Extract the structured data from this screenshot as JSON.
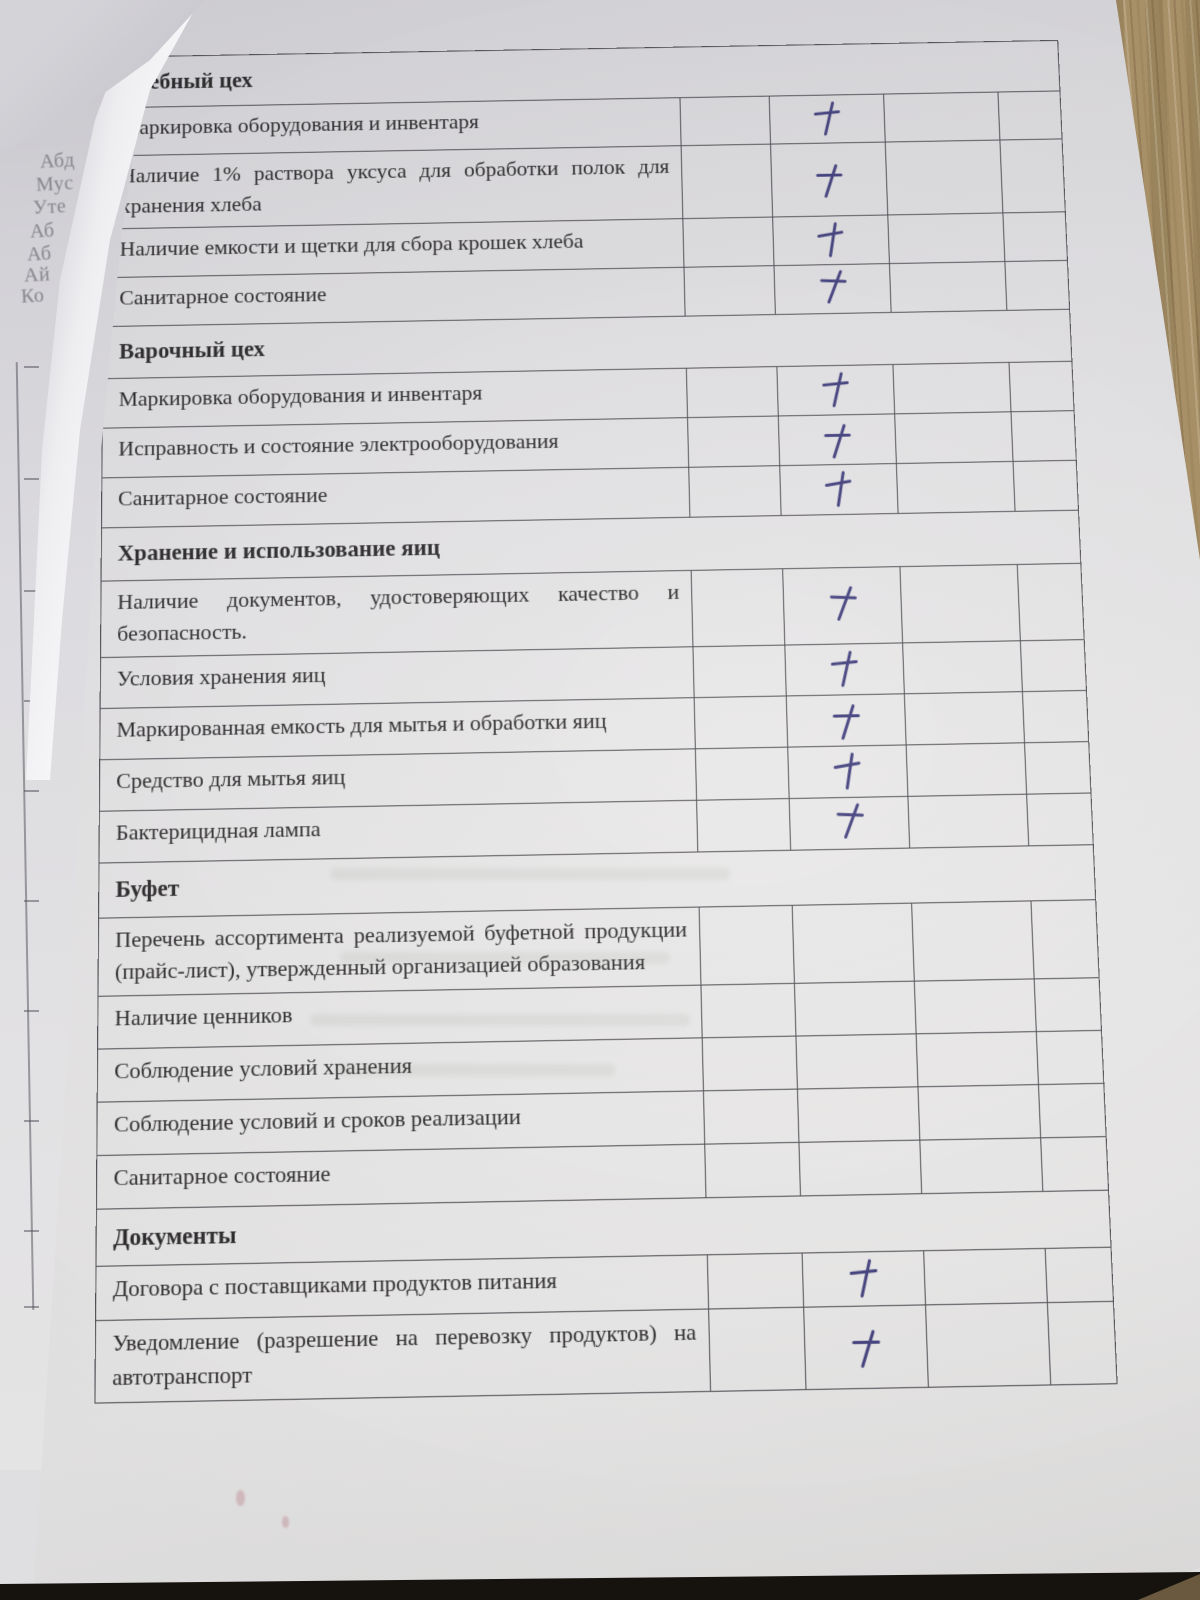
{
  "colors": {
    "ink": "#44427f",
    "table_line": "#343338",
    "wood": "#a79067",
    "paper": "#eae9ea"
  },
  "checklist": {
    "check_symbol": "+",
    "sections": [
      {
        "title": "Хлебный цех",
        "rows": [
          {
            "label": "Маркировка оборудования и инвентаря",
            "checked": true
          },
          {
            "label": "Наличие 1% раствора уксуса для обработки полок для хранения хлеба",
            "checked": true
          },
          {
            "label": "Наличие емкости и щетки для сбора крошек хлеба",
            "checked": true
          },
          {
            "label": "Санитарное состояние",
            "checked": true
          }
        ]
      },
      {
        "title": "Варочный цех",
        "rows": [
          {
            "label": "Маркировка оборудования и инвентаря",
            "checked": true
          },
          {
            "label": "Исправность и состояние электрооборудования",
            "checked": true
          },
          {
            "label": "Санитарное состояние",
            "checked": true
          }
        ]
      },
      {
        "title": "Хранение и использование яиц",
        "rows": [
          {
            "label": "Наличие документов, удостоверяющих качество и безопасность.",
            "checked": true
          },
          {
            "label": "Условия хранения яиц",
            "checked": true
          },
          {
            "label": "Маркированная емкость для мытья и обработки яиц",
            "checked": true
          },
          {
            "label": "Средство для мытья яиц",
            "checked": true
          },
          {
            "label": "Бактерицидная лампа",
            "checked": true
          }
        ]
      },
      {
        "title": "Буфет",
        "rows": [
          {
            "label": "Перечень ассортимента реализуемой буфетной продукции (прайс-лист), утвержденный организацией образования",
            "checked": false
          },
          {
            "label": "Наличие ценников",
            "checked": false
          },
          {
            "label": "Соблюдение условий хранения",
            "checked": false
          },
          {
            "label": "Соблюдение условий и сроков реализации",
            "checked": false
          },
          {
            "label": "Санитарное состояние",
            "checked": false
          }
        ]
      },
      {
        "title": "Документы",
        "rows": [
          {
            "label": "Договора с поставщиками продуктов питания",
            "checked": true
          },
          {
            "label": "Уведомление (разрешение на перевозку продуктов) на автотранспорт",
            "checked": true
          }
        ]
      }
    ]
  },
  "background_page": {
    "text_fragments": [
      "Абд",
      "Мус",
      "Уте",
      "Аб",
      "Аб",
      "Ай",
      "Ко"
    ]
  }
}
